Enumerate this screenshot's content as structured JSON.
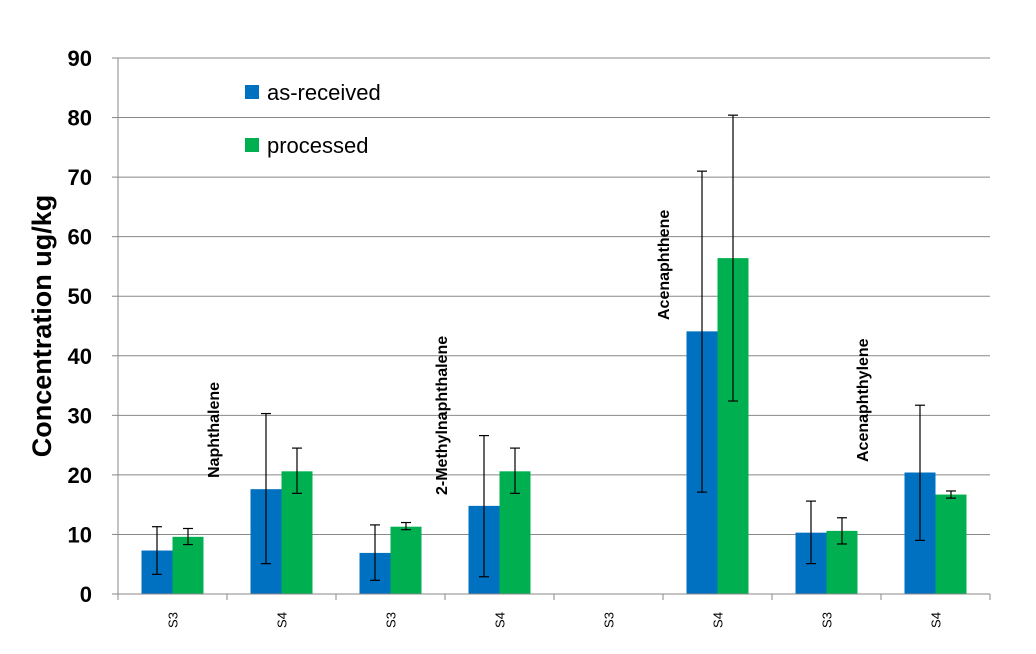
{
  "chart_data": {
    "type": "bar",
    "title": "",
    "xlabel": "",
    "ylabel": "Concentration ug/kg",
    "ylim": [
      0,
      90
    ],
    "yticks": [
      0,
      10,
      20,
      30,
      40,
      50,
      60,
      70,
      80,
      90
    ],
    "grid": true,
    "legend_placement": "top-left",
    "categories": [
      "S3",
      "S4",
      "S3",
      "S4",
      "S3",
      "S4",
      "S3",
      "S4"
    ],
    "annotations": [
      "Naphthalene",
      "2-Methylnaphthalene",
      "Acenaphthene",
      "Acenaphthylene"
    ],
    "series": [
      {
        "name": "as-received",
        "color": "#0070C0",
        "values": [
          7.3,
          17.6,
          6.9,
          14.8,
          null,
          44.1,
          10.3,
          20.4
        ],
        "error_low": [
          3.3,
          5.1,
          2.3,
          2.9,
          null,
          17.1,
          5.1,
          9.0
        ],
        "error_high": [
          11.3,
          30.3,
          11.6,
          26.6,
          null,
          71.0,
          15.6,
          31.7
        ]
      },
      {
        "name": "processed",
        "color": "#00B050",
        "values": [
          9.6,
          20.6,
          11.3,
          20.6,
          null,
          56.4,
          10.6,
          16.7
        ],
        "error_low": [
          8.3,
          16.9,
          10.8,
          16.9,
          null,
          32.4,
          8.4,
          16.1
        ],
        "error_high": [
          11.0,
          24.5,
          12.0,
          24.5,
          null,
          80.4,
          12.8,
          17.3
        ]
      }
    ]
  }
}
